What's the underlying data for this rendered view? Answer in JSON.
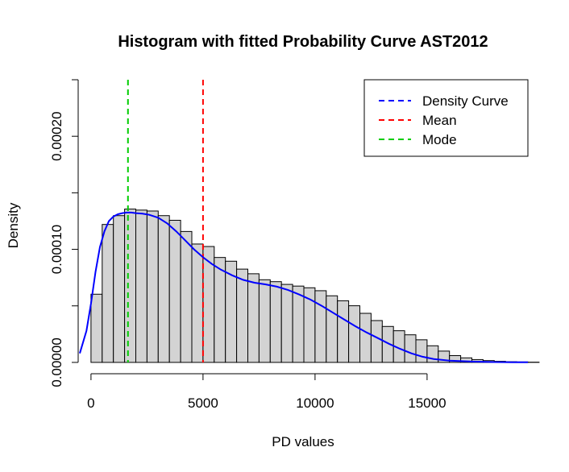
{
  "chart_data": {
    "type": "bar",
    "title": "Histogram with fitted Probability Curve AST2012",
    "xlabel": "PD values",
    "ylabel": "Density",
    "xlim": [
      -500,
      19500
    ],
    "ylim": [
      -2e-05,
      0.00025
    ],
    "x_ticks": [
      {
        "value": 0,
        "label": "0"
      },
      {
        "value": 5000,
        "label": "5000"
      },
      {
        "value": 10000,
        "label": "10000"
      },
      {
        "value": 15000,
        "label": "15000"
      }
    ],
    "y_ticks": [
      {
        "value": 0,
        "label": "0.00000"
      },
      {
        "value": 5e-05,
        "label": ""
      },
      {
        "value": 0.0001,
        "label": "0.00010"
      },
      {
        "value": 0.00015,
        "label": ""
      },
      {
        "value": 0.0002,
        "label": "0.00020"
      },
      {
        "value": 0.00025,
        "label": ""
      }
    ],
    "histogram": {
      "bin_width": 500,
      "bin_start": 0,
      "values": [
        6.03e-05,
        0.000122,
        0.0001298,
        0.0001356,
        0.0001347,
        0.0001339,
        0.0001298,
        0.0001257,
        0.0001158,
        0.0001047,
        0.0001025,
        9.28e-05,
        8.95e-05,
        8.25e-05,
        7.84e-05,
        7.31e-05,
        7.14e-05,
        6.9e-05,
        6.75e-05,
        6.6e-05,
        6.34e-05,
        5.89e-05,
        5.45e-05,
        5.01e-05,
        4.34e-05,
        3.7e-05,
        3.18e-05,
        2.8e-05,
        2.44e-05,
        2e-05,
        1.47e-05,
        1e-05,
        6e-06,
        4e-06,
        2.5e-06,
        1.6e-06,
        1e-06,
        6e-07,
        4e-07,
        2e-07
      ],
      "fill": "#d3d3d3",
      "stroke": "#000000"
    },
    "series": [
      {
        "name": "Density Curve",
        "color": "#0000ff",
        "x": [
          -500,
          -200,
          0,
          200,
          400,
          600,
          800,
          1000,
          1200,
          1400,
          1600,
          1800,
          2000,
          2300,
          2600,
          3000,
          3400,
          3800,
          4200,
          4600,
          5000,
          5400,
          5800,
          6300,
          6800,
          7300,
          7800,
          8300,
          8800,
          9300,
          9800,
          10300,
          10800,
          11300,
          11800,
          12300,
          12800,
          13300,
          13800,
          14300,
          14800,
          15300,
          16000,
          17000,
          18000,
          19000,
          19500
        ],
        "y": [
          8e-06,
          2.8e-05,
          5.2e-05,
          8e-05,
          0.000102,
          0.000116,
          0.000125,
          0.000129,
          0.000131,
          0.000132,
          0.0001325,
          0.0001325,
          0.000132,
          0.0001315,
          0.0001305,
          0.000128,
          0.000123,
          0.000116,
          0.000108,
          0.0001,
          9.3e-05,
          8.7e-05,
          8.2e-05,
          7.7e-05,
          7.3e-05,
          7.05e-05,
          6.9e-05,
          6.7e-05,
          6.4e-05,
          6e-05,
          5.55e-05,
          5e-05,
          4.4e-05,
          3.8e-05,
          3.2e-05,
          2.65e-05,
          2.15e-05,
          1.65e-05,
          1.2e-05,
          8e-06,
          5e-06,
          3e-06,
          1.5e-06,
          7e-07,
          3e-07,
          1e-07,
          1e-07
        ]
      },
      {
        "name": "Mean",
        "color": "#ff0000",
        "x": 5000
      },
      {
        "name": "Mode",
        "color": "#00cd00",
        "x": 1650
      }
    ],
    "legend_position": "top-right"
  }
}
